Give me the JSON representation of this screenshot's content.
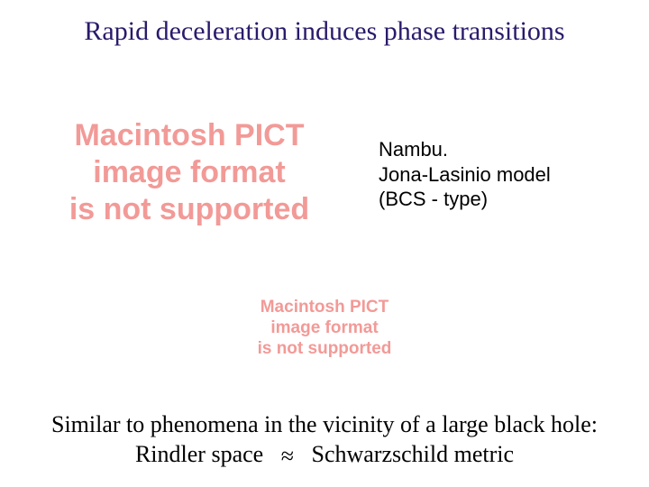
{
  "colors": {
    "title_color": "#2a1a6b",
    "pict_color": "#f29a97",
    "body_color": "#000000",
    "background": "#ffffff"
  },
  "title": {
    "text": "Rapid deceleration induces phase transitions",
    "fontsize": 30
  },
  "pict_left": {
    "line1": "Macintosh PICT",
    "line2": "image format",
    "line3": "is not supported",
    "fontsize": 34
  },
  "model": {
    "line1": "Nambu.",
    "line2": "Jona-Lasinio model",
    "line3": "(BCS - type)",
    "fontsize": 22
  },
  "pict_center": {
    "line1": "Macintosh PICT",
    "line2": "image format",
    "line3": "is not supported",
    "fontsize": 19
  },
  "bottom": {
    "line1": "Similar to phenomena in the vicinity of a large black hole:",
    "line2_left": "Rindler space",
    "approx_symbol": "≈",
    "line2_right": "Schwarzschild metric",
    "fontsize": 26
  }
}
